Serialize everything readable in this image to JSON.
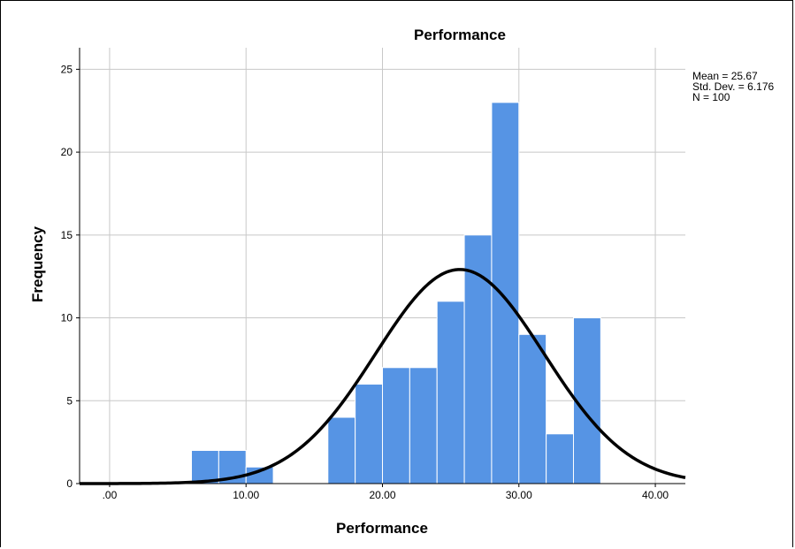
{
  "chart_data": {
    "type": "bar",
    "title": "Performance",
    "xlabel": "Performance",
    "ylabel": "Frequency",
    "xlim": [
      -2.2,
      42.2
    ],
    "ylim": [
      0,
      26.3
    ],
    "x_ticks": [
      {
        "value": 0,
        "label": ".00"
      },
      {
        "value": 10,
        "label": "10.00"
      },
      {
        "value": 20,
        "label": "20.00"
      },
      {
        "value": 30,
        "label": "30.00"
      },
      {
        "value": 40,
        "label": "40.00"
      }
    ],
    "y_ticks": [
      {
        "value": 0,
        "label": "0"
      },
      {
        "value": 5,
        "label": "5"
      },
      {
        "value": 10,
        "label": "10"
      },
      {
        "value": 15,
        "label": "15"
      },
      {
        "value": 20,
        "label": "20"
      },
      {
        "value": 25,
        "label": "25"
      }
    ],
    "grid": true,
    "bin_width": 2,
    "bins": [
      {
        "start": 6,
        "end": 8,
        "count": 2
      },
      {
        "start": 8,
        "end": 10,
        "count": 2
      },
      {
        "start": 10,
        "end": 12,
        "count": 1
      },
      {
        "start": 16,
        "end": 18,
        "count": 4
      },
      {
        "start": 18,
        "end": 20,
        "count": 6
      },
      {
        "start": 20,
        "end": 22,
        "count": 7
      },
      {
        "start": 22,
        "end": 24,
        "count": 7
      },
      {
        "start": 24,
        "end": 26,
        "count": 11
      },
      {
        "start": 26,
        "end": 28,
        "count": 15
      },
      {
        "start": 28,
        "end": 30,
        "count": 23
      },
      {
        "start": 30,
        "end": 32,
        "count": 9
      },
      {
        "start": 32,
        "end": 34,
        "count": 3
      },
      {
        "start": 34,
        "end": 36,
        "count": 10
      }
    ],
    "normal_curve": {
      "mean": 25.67,
      "std_dev": 6.176,
      "n": 100
    },
    "stats_lines": [
      "Mean = 25.67",
      "Std. Dev. = 6.176",
      "N = 100"
    ],
    "bar_color": "#5694e4",
    "curve_color": "#000000",
    "grid_color": "#c8c8c8"
  }
}
